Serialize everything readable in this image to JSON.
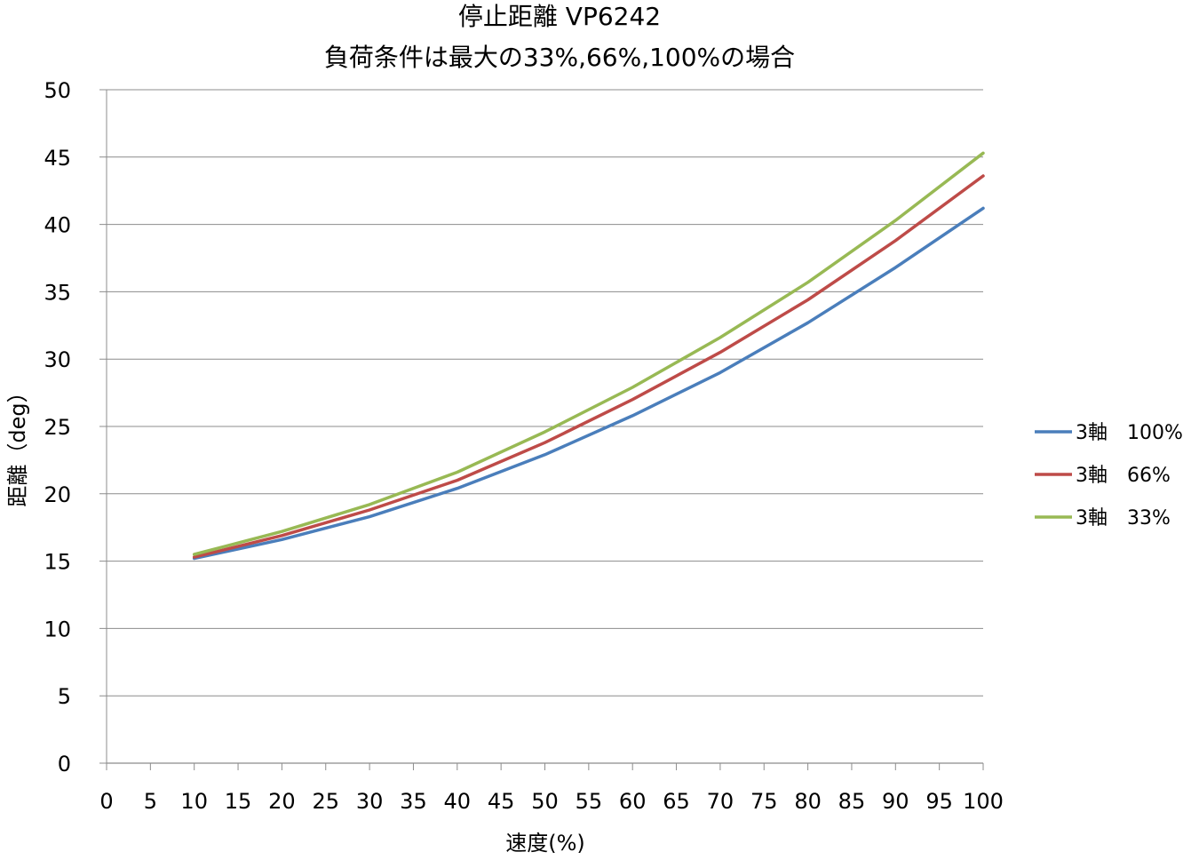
{
  "chart_data": {
    "type": "line",
    "title": "停止距離 VP6242",
    "subtitle": "負荷条件は最大の33%,66%,100%の場合",
    "xlabel": "速度(%)",
    "ylabel": "距離（deg）",
    "xlim": [
      0,
      100
    ],
    "ylim": [
      0,
      50
    ],
    "xticks": [
      0,
      5,
      10,
      15,
      20,
      25,
      30,
      35,
      40,
      45,
      50,
      55,
      60,
      65,
      70,
      75,
      80,
      85,
      90,
      95,
      100
    ],
    "yticks": [
      0,
      5,
      10,
      15,
      20,
      25,
      30,
      35,
      40,
      45,
      50
    ],
    "grid": "horizontal",
    "legend_position": "right",
    "x": [
      10,
      20,
      30,
      40,
      50,
      60,
      70,
      80,
      90,
      100
    ],
    "series": [
      {
        "name": "3軸　100%",
        "color": "#4a7ebb",
        "values": [
          15.2,
          16.6,
          18.3,
          20.4,
          22.9,
          25.8,
          29.0,
          32.7,
          36.8,
          41.2
        ]
      },
      {
        "name": "3軸　66%",
        "color": "#be4b48",
        "values": [
          15.3,
          16.9,
          18.8,
          21.0,
          23.8,
          27.0,
          30.5,
          34.4,
          38.8,
          43.6
        ]
      },
      {
        "name": "3軸　33%",
        "color": "#98b954",
        "values": [
          15.5,
          17.2,
          19.2,
          21.6,
          24.6,
          27.9,
          31.6,
          35.7,
          40.3,
          45.3
        ]
      }
    ]
  }
}
